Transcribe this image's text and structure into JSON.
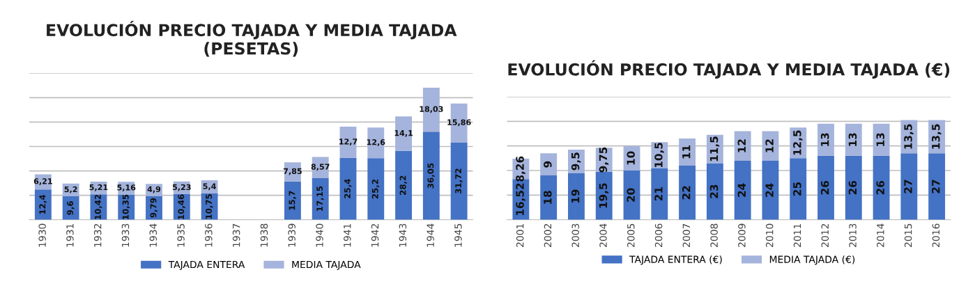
{
  "chart_data": [
    {
      "type": "bar",
      "title": "EVOLUCIÓN PRECIO TAJADA Y MEDIA TAJADA (PESETAS)",
      "stacked": true,
      "legend": "bottom",
      "grid": "y",
      "tick_labels": "x",
      "categories": [
        "1930",
        "1931",
        "1932",
        "1933",
        "1934",
        "1935",
        "1936",
        "1937",
        "1938",
        "1939",
        "1940",
        "1941",
        "1942",
        "1943",
        "1944",
        "1945"
      ],
      "ylim": [
        0,
        60
      ],
      "yticks": [
        {
          "value": 0,
          "label": null
        },
        {
          "value": 10,
          "label": null
        },
        {
          "value": 20,
          "label": null
        },
        {
          "value": 30,
          "label": null
        },
        {
          "value": 40,
          "label": null
        },
        {
          "value": 50,
          "label": null
        },
        {
          "value": 60,
          "label": null
        }
      ],
      "series": [
        {
          "name": "TAJADA ENTERA",
          "color": "#4472c4",
          "values": [
            12.4,
            9.6,
            10.42,
            10.35,
            9.79,
            10.46,
            10.75,
            null,
            null,
            15.7,
            17.15,
            25.4,
            25.2,
            28.2,
            36.05,
            31.72
          ],
          "value_labels": [
            "12,4",
            "9,6",
            "10,42",
            "10,35",
            "9,79",
            "10,46",
            "10,75",
            null,
            null,
            "15,7",
            "17,15",
            "25,4",
            "25,2",
            "28,2",
            "36,05",
            "31,72"
          ]
        },
        {
          "name": "MEDIA TAJADA",
          "color": "#a5b4dc",
          "values": [
            6.21,
            5.2,
            5.21,
            5.16,
            4.9,
            5.23,
            5.4,
            null,
            null,
            7.85,
            8.57,
            12.7,
            12.6,
            14.1,
            18.03,
            15.86
          ],
          "value_labels": [
            "6,21",
            "5,2",
            "5,21",
            "5,16",
            "4,9",
            "5,23",
            "5,4",
            null,
            null,
            "7,85",
            "8,57",
            "12,7",
            "12,6",
            "14,1",
            "18,03",
            "15,86"
          ]
        }
      ]
    },
    {
      "type": "bar",
      "title": "EVOLUCIÓN PRECIO TAJADA Y MEDIA TAJADA (€)",
      "stacked": true,
      "legend": "bottom",
      "grid": "y",
      "tick_labels": "x",
      "categories": [
        "2001",
        "2002",
        "2003",
        "2004",
        "2005",
        "2006",
        "2007",
        "2008",
        "2009",
        "2010",
        "2011",
        "2012",
        "2013",
        "2014",
        "2015",
        "2016"
      ],
      "ylim": [
        0,
        50
      ],
      "yticks": [
        {
          "value": 0,
          "label": null
        },
        {
          "value": 10,
          "label": null
        },
        {
          "value": 20,
          "label": null
        },
        {
          "value": 30,
          "label": null
        },
        {
          "value": 40,
          "label": null
        },
        {
          "value": 50,
          "label": null
        }
      ],
      "series": [
        {
          "name": "TAJADA ENTERA (€)",
          "color": "#4472c4",
          "values": [
            16.52,
            18,
            19,
            19.5,
            20,
            21,
            22,
            23,
            24,
            24,
            25,
            26,
            26,
            26,
            27,
            27
          ],
          "value_labels": [
            "16,52",
            "18",
            "19",
            "19,5",
            "20",
            "21",
            "22",
            "23",
            "24",
            "24",
            "25",
            "26",
            "26",
            "26",
            "27",
            "27"
          ]
        },
        {
          "name": "MEDIA TAJADA (€)",
          "color": "#a5b4dc",
          "values": [
            8.26,
            9,
            9.5,
            9.75,
            10,
            10.5,
            11,
            11.5,
            12,
            12,
            12.5,
            13,
            13,
            13,
            13.5,
            13.5
          ],
          "value_labels": [
            "8,26",
            "9",
            "9,5",
            "9,75",
            "10",
            "10,5",
            "11",
            "11,5",
            "12",
            "12",
            "12,5",
            "13",
            "13",
            "13",
            "13,5",
            "13,5"
          ]
        }
      ]
    }
  ]
}
